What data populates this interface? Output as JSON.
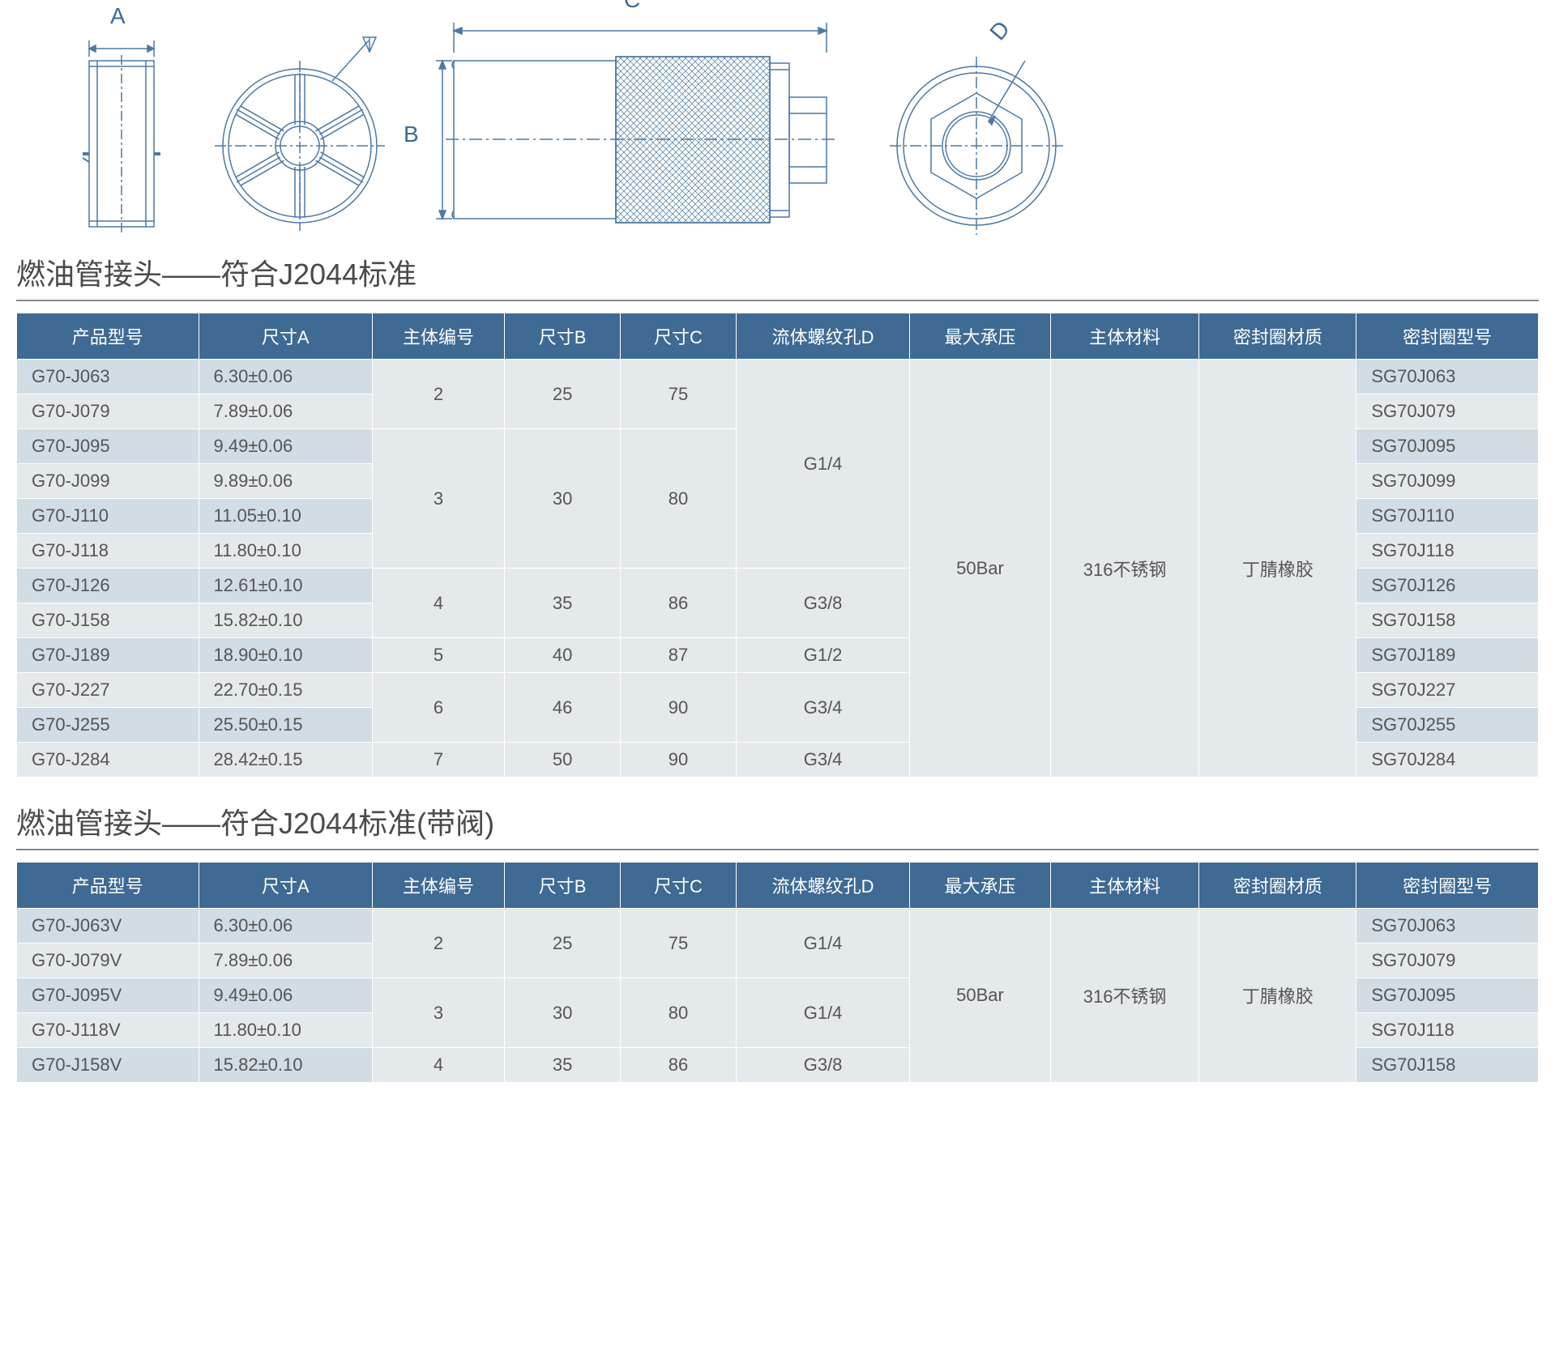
{
  "colors": {
    "header_bg": "#3e6a94",
    "row_blue": "#d1dce5",
    "row_gray": "#e4e9ec",
    "drawing_stroke": "#4c79a4",
    "text": "#555"
  },
  "diagrams": {
    "labels": {
      "A": "A",
      "B": "B",
      "C": "C",
      "D": "D"
    }
  },
  "section1": {
    "title": "燃油管接头——符合J2044标准",
    "columns": [
      "产品型号",
      "尺寸A",
      "主体编号",
      "尺寸B",
      "尺寸C",
      "流体螺纹孔D",
      "最大承压",
      "主体材料",
      "密封圈材质",
      "密封圈型号"
    ],
    "col_widths_pct": [
      11,
      10.5,
      8,
      7,
      7,
      10.5,
      8.5,
      9,
      9.5,
      11
    ],
    "max_pressure": "50Bar",
    "body_material": "316不锈钢",
    "seal_material": "丁腈橡胶",
    "groups": [
      {
        "body_num": "2",
        "dimB": "25",
        "dimC": "75",
        "threadD": "G1/4",
        "threadD_span": 6,
        "rows": [
          {
            "model": "G70-J063",
            "dimA": "6.30±0.06",
            "seal": "SG70J063",
            "shade": "blue"
          },
          {
            "model": "G70-J079",
            "dimA": "7.89±0.06",
            "seal": "SG70J079",
            "shade": "gray"
          }
        ]
      },
      {
        "body_num": "3",
        "dimB": "30",
        "dimC": "80",
        "rows": [
          {
            "model": "G70-J095",
            "dimA": "9.49±0.06",
            "seal": "SG70J095",
            "shade": "blue"
          },
          {
            "model": "G70-J099",
            "dimA": "9.89±0.06",
            "seal": "SG70J099",
            "shade": "gray"
          },
          {
            "model": "G70-J110",
            "dimA": "11.05±0.10",
            "seal": "SG70J110",
            "shade": "blue"
          },
          {
            "model": "G70-J118",
            "dimA": "11.80±0.10",
            "seal": "SG70J118",
            "shade": "gray"
          }
        ]
      },
      {
        "body_num": "4",
        "dimB": "35",
        "dimC": "86",
        "threadD": "G3/8",
        "threadD_span": 2,
        "rows": [
          {
            "model": "G70-J126",
            "dimA": "12.61±0.10",
            "seal": "SG70J126",
            "shade": "blue"
          },
          {
            "model": "G70-J158",
            "dimA": "15.82±0.10",
            "seal": "SG70J158",
            "shade": "gray"
          }
        ]
      },
      {
        "body_num": "5",
        "dimB": "40",
        "dimC": "87",
        "threadD": "G1/2",
        "threadD_span": 1,
        "rows": [
          {
            "model": "G70-J189",
            "dimA": "18.90±0.10",
            "seal": "SG70J189",
            "shade": "blue"
          }
        ]
      },
      {
        "body_num": "6",
        "dimB": "46",
        "dimC": "90",
        "threadD": "G3/4",
        "threadD_span": 2,
        "rows": [
          {
            "model": "G70-J227",
            "dimA": "22.70±0.15",
            "seal": "SG70J227",
            "shade": "gray"
          },
          {
            "model": "G70-J255",
            "dimA": "25.50±0.15",
            "seal": "SG70J255",
            "shade": "blue"
          }
        ]
      },
      {
        "body_num": "7",
        "dimB": "50",
        "dimC": "90",
        "threadD": "G3/4",
        "threadD_span": 1,
        "rows": [
          {
            "model": "G70-J284",
            "dimA": "28.42±0.15",
            "seal": "SG70J284",
            "shade": "gray"
          }
        ]
      }
    ]
  },
  "section2": {
    "title": "燃油管接头——符合J2044标准(带阀)",
    "columns": [
      "产品型号",
      "尺寸A",
      "主体编号",
      "尺寸B",
      "尺寸C",
      "流体螺纹孔D",
      "最大承压",
      "主体材料",
      "密封圈材质",
      "密封圈型号"
    ],
    "max_pressure": "50Bar",
    "body_material": "316不锈钢",
    "seal_material": "丁腈橡胶",
    "groups": [
      {
        "body_num": "2",
        "dimB": "25",
        "dimC": "75",
        "threadD": "G1/4",
        "threadD_span": 2,
        "rows": [
          {
            "model": "G70-J063V",
            "dimA": "6.30±0.06",
            "seal": "SG70J063",
            "shade": "blue"
          },
          {
            "model": "G70-J079V",
            "dimA": "7.89±0.06",
            "seal": "SG70J079",
            "shade": "gray"
          }
        ]
      },
      {
        "body_num": "3",
        "dimB": "30",
        "dimC": "80",
        "threadD": "G1/4",
        "threadD_span": 2,
        "rows": [
          {
            "model": "G70-J095V",
            "dimA": "9.49±0.06",
            "seal": "SG70J095",
            "shade": "blue"
          },
          {
            "model": "G70-J118V",
            "dimA": "11.80±0.10",
            "seal": "SG70J118",
            "shade": "gray"
          }
        ]
      },
      {
        "body_num": "4",
        "dimB": "35",
        "dimC": "86",
        "threadD": "G3/8",
        "threadD_span": 1,
        "rows": [
          {
            "model": "G70-J158V",
            "dimA": "15.82±0.10",
            "seal": "SG70J158",
            "shade": "blue"
          }
        ]
      }
    ]
  }
}
